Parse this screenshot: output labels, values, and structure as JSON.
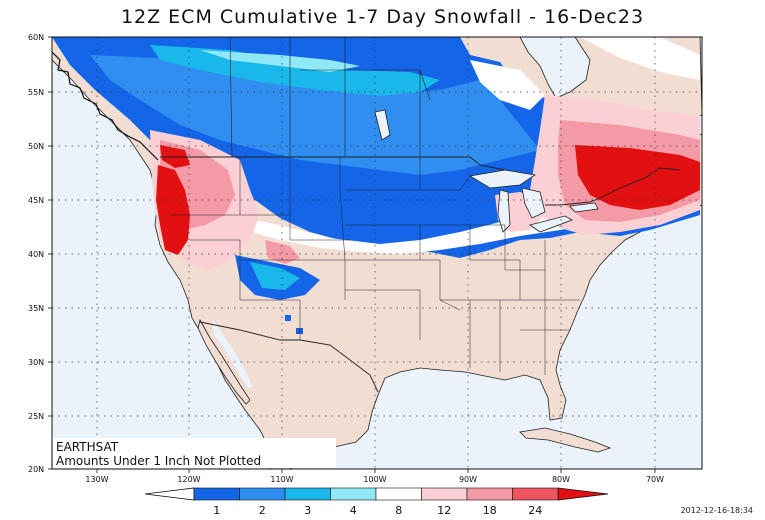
{
  "title": "12Z ECM Cumulative 1-7 Day Snowfall - 16-Dec23",
  "lat_labels": [
    "60N",
    "55N",
    "50N",
    "45N",
    "40N",
    "35N",
    "30N",
    "25N",
    "20N"
  ],
  "lon_labels": [
    "130W",
    "120W",
    "110W",
    "100W",
    "90W",
    "80W",
    "70W"
  ],
  "credit": "EARTHSAT",
  "note": "Amounts Under 1 Inch Not Plotted",
  "timestamp": "2012-12-16-18:34",
  "colorbar": {
    "ticks": [
      "1",
      "2",
      "3",
      "4",
      "8",
      "12",
      "18",
      "24"
    ],
    "colors": [
      "#1565e8",
      "#2f8ef0",
      "#1ab7ea",
      "#8fe8f5",
      "#ffffff",
      "#fbd0d4",
      "#f49aa6",
      "#ef5560",
      "#e21010"
    ]
  },
  "colors": {
    "ocean": "#eaf3fa",
    "land": "#f2ddd3",
    "blue_heavy": "#1565e8",
    "blue_mid": "#2f8ef0",
    "cyan": "#1ab7ea",
    "cyan_light": "#8fe8f5",
    "pink_light": "#fbd0d4",
    "pink": "#f49aa6",
    "red": "#e21010"
  }
}
